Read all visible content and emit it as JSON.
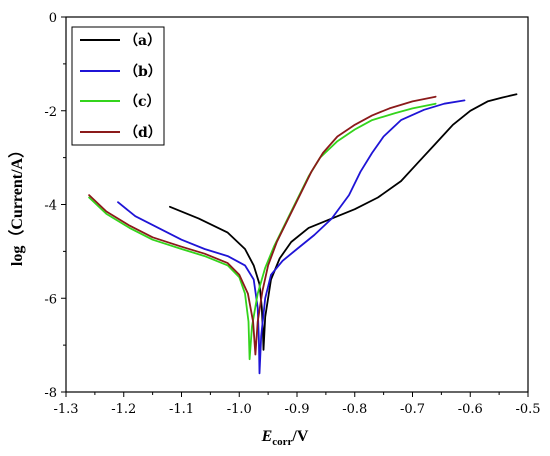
{
  "chart_data": {
    "type": "line",
    "xlabel_main": "E",
    "xlabel_sub": "corr",
    "xlabel_unit": "/V",
    "ylabel": "log（Current/A）",
    "xlim": [
      -1.3,
      -0.5
    ],
    "ylim": [
      -8,
      0
    ],
    "xticks": [
      -1.3,
      -1.2,
      -1.1,
      -1.0,
      -0.9,
      -0.8,
      -0.7,
      -0.6,
      -0.5
    ],
    "xtick_labels": [
      "-1.3",
      "-1.2",
      "-1.1",
      "-1.0",
      "-0.9",
      "-0.8",
      "-0.7",
      "-0.6",
      "-0.5"
    ],
    "yticks": [
      0,
      -2,
      -4,
      -6,
      -8
    ],
    "ytick_labels": [
      "0",
      "-2",
      "-4",
      "-6",
      "-8"
    ],
    "grid": false,
    "legend_position": "top-left",
    "series": [
      {
        "name": "（a）",
        "color": "#000000",
        "points": [
          [
            -1.12,
            -4.05
          ],
          [
            -1.07,
            -4.3
          ],
          [
            -1.02,
            -4.6
          ],
          [
            -0.99,
            -4.95
          ],
          [
            -0.975,
            -5.3
          ],
          [
            -0.965,
            -5.7
          ],
          [
            -0.961,
            -6.2
          ],
          [
            -0.959,
            -6.7
          ],
          [
            -0.958,
            -7.1
          ],
          [
            -0.955,
            -6.4
          ],
          [
            -0.945,
            -5.6
          ],
          [
            -0.93,
            -5.15
          ],
          [
            -0.91,
            -4.8
          ],
          [
            -0.88,
            -4.5
          ],
          [
            -0.84,
            -4.3
          ],
          [
            -0.8,
            -4.1
          ],
          [
            -0.76,
            -3.85
          ],
          [
            -0.72,
            -3.5
          ],
          [
            -0.69,
            -3.1
          ],
          [
            -0.66,
            -2.7
          ],
          [
            -0.63,
            -2.3
          ],
          [
            -0.6,
            -2.0
          ],
          [
            -0.57,
            -1.8
          ],
          [
            -0.545,
            -1.72
          ],
          [
            -0.52,
            -1.65
          ]
        ]
      },
      {
        "name": "（b）",
        "color": "#1f14d6",
        "points": [
          [
            -1.21,
            -3.95
          ],
          [
            -1.18,
            -4.25
          ],
          [
            -1.14,
            -4.5
          ],
          [
            -1.1,
            -4.75
          ],
          [
            -1.06,
            -4.95
          ],
          [
            -1.02,
            -5.1
          ],
          [
            -0.99,
            -5.3
          ],
          [
            -0.975,
            -5.6
          ],
          [
            -0.968,
            -6.2
          ],
          [
            -0.966,
            -6.9
          ],
          [
            -0.965,
            -7.6
          ],
          [
            -0.962,
            -6.8
          ],
          [
            -0.955,
            -6.0
          ],
          [
            -0.945,
            -5.5
          ],
          [
            -0.925,
            -5.2
          ],
          [
            -0.9,
            -4.95
          ],
          [
            -0.87,
            -4.65
          ],
          [
            -0.84,
            -4.3
          ],
          [
            -0.81,
            -3.8
          ],
          [
            -0.79,
            -3.3
          ],
          [
            -0.77,
            -2.9
          ],
          [
            -0.75,
            -2.55
          ],
          [
            -0.72,
            -2.2
          ],
          [
            -0.68,
            -1.98
          ],
          [
            -0.645,
            -1.85
          ],
          [
            -0.61,
            -1.78
          ]
        ]
      },
      {
        "name": "（c）",
        "color": "#34d41c",
        "points": [
          [
            -1.26,
            -3.85
          ],
          [
            -1.23,
            -4.2
          ],
          [
            -1.19,
            -4.5
          ],
          [
            -1.15,
            -4.75
          ],
          [
            -1.1,
            -4.95
          ],
          [
            -1.06,
            -5.1
          ],
          [
            -1.02,
            -5.3
          ],
          [
            -1.0,
            -5.55
          ],
          [
            -0.99,
            -5.9
          ],
          [
            -0.984,
            -6.5
          ],
          [
            -0.982,
            -7.3
          ],
          [
            -0.978,
            -6.6
          ],
          [
            -0.968,
            -5.9
          ],
          [
            -0.955,
            -5.35
          ],
          [
            -0.94,
            -4.9
          ],
          [
            -0.92,
            -4.4
          ],
          [
            -0.9,
            -3.9
          ],
          [
            -0.88,
            -3.4
          ],
          [
            -0.86,
            -3.0
          ],
          [
            -0.83,
            -2.65
          ],
          [
            -0.8,
            -2.4
          ],
          [
            -0.77,
            -2.2
          ],
          [
            -0.73,
            -2.05
          ],
          [
            -0.7,
            -1.95
          ],
          [
            -0.66,
            -1.85
          ]
        ]
      },
      {
        "name": "（d）",
        "color": "#8b1a1a",
        "points": [
          [
            -1.26,
            -3.8
          ],
          [
            -1.23,
            -4.15
          ],
          [
            -1.19,
            -4.45
          ],
          [
            -1.15,
            -4.7
          ],
          [
            -1.1,
            -4.9
          ],
          [
            -1.06,
            -5.05
          ],
          [
            -1.02,
            -5.25
          ],
          [
            -1.0,
            -5.5
          ],
          [
            -0.985,
            -5.9
          ],
          [
            -0.976,
            -6.5
          ],
          [
            -0.972,
            -7.2
          ],
          [
            -0.968,
            -6.5
          ],
          [
            -0.96,
            -5.85
          ],
          [
            -0.95,
            -5.3
          ],
          [
            -0.935,
            -4.8
          ],
          [
            -0.915,
            -4.3
          ],
          [
            -0.895,
            -3.8
          ],
          [
            -0.875,
            -3.3
          ],
          [
            -0.855,
            -2.9
          ],
          [
            -0.83,
            -2.55
          ],
          [
            -0.8,
            -2.3
          ],
          [
            -0.77,
            -2.1
          ],
          [
            -0.74,
            -1.95
          ],
          [
            -0.7,
            -1.8
          ],
          [
            -0.66,
            -1.7
          ]
        ]
      }
    ]
  }
}
